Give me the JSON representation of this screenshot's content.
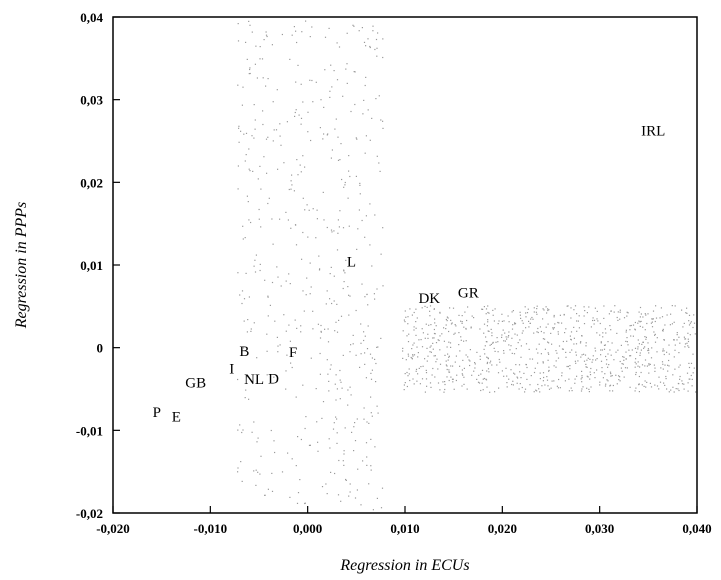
{
  "chart_data": {
    "type": "scatter",
    "title": "",
    "xlabel": "Regression in ECUs",
    "ylabel": "Regression in PPPs",
    "xlim": [
      -0.02,
      0.04
    ],
    "ylim": [
      -0.02,
      0.04
    ],
    "x_ticks": [
      -0.02,
      -0.01,
      0.0,
      0.01,
      0.02,
      0.03,
      0.04
    ],
    "x_tick_labels": [
      "-0,020",
      "-0,010",
      "0,000",
      "0,010",
      "0,020",
      "0,030",
      "0,040"
    ],
    "y_ticks": [
      -0.02,
      -0.01,
      0,
      0.01,
      0.02,
      0.03,
      0.04
    ],
    "y_tick_labels": [
      "-0,02",
      "-0,01",
      "0",
      "0,01",
      "0,02",
      "0,03",
      "0,04"
    ],
    "grid": false,
    "points": [
      {
        "label": "IRL",
        "x": 0.0355,
        "y": 0.0263
      },
      {
        "label": "L",
        "x": 0.0045,
        "y": 0.0104
      },
      {
        "label": "DK",
        "x": 0.0125,
        "y": 0.006
      },
      {
        "label": "GR",
        "x": 0.0165,
        "y": 0.0067
      },
      {
        "label": "B",
        "x": -0.0065,
        "y": -0.0004
      },
      {
        "label": "F",
        "x": -0.0015,
        "y": -0.0005
      },
      {
        "label": "I",
        "x": -0.0078,
        "y": -0.0025
      },
      {
        "label": "NL",
        "x": -0.0055,
        "y": -0.0038
      },
      {
        "label": "D",
        "x": -0.0035,
        "y": -0.0037
      },
      {
        "label": "GB",
        "x": -0.0115,
        "y": -0.0042
      },
      {
        "label": "P",
        "x": -0.0155,
        "y": -0.0078
      },
      {
        "label": "E",
        "x": -0.0135,
        "y": -0.0083
      }
    ]
  }
}
